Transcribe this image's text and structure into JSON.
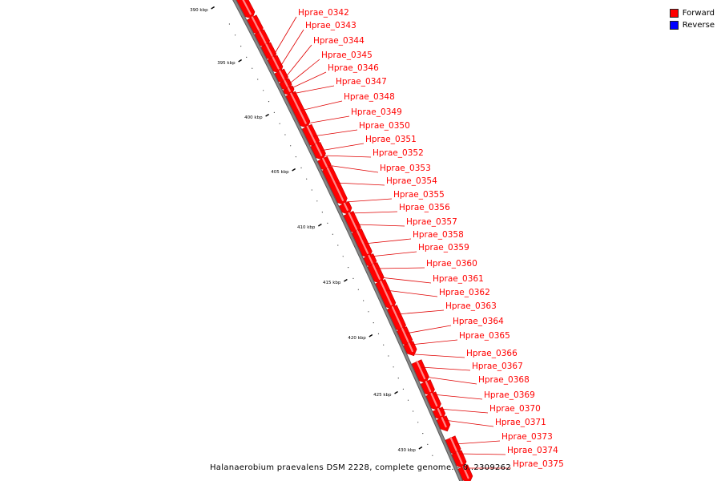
{
  "legend": {
    "forward": {
      "label": "Forward",
      "color": "#ff0000"
    },
    "reverse": {
      "label": "Reverse",
      "color": "#0000ff"
    }
  },
  "caption": "Halanaerobium praevalens DSM 2228, complete genome. - 0..2309262",
  "backbone_color": "#888888",
  "ticks": [
    "390 kbp",
    "395 kbp",
    "400 kbp",
    "405 kbp",
    "410 kbp",
    "415 kbp",
    "420 kbp",
    "425 kbp",
    "430 kbp"
  ],
  "genes": [
    {
      "label": "Hprae_0342",
      "strand": "forward"
    },
    {
      "label": "Hprae_0343",
      "strand": "forward"
    },
    {
      "label": "Hprae_0344",
      "strand": "forward"
    },
    {
      "label": "Hprae_0345",
      "strand": "forward"
    },
    {
      "label": "Hprae_0346",
      "strand": "forward"
    },
    {
      "label": "Hprae_0347",
      "strand": "forward"
    },
    {
      "label": "Hprae_0348",
      "strand": "forward"
    },
    {
      "label": "Hprae_0349",
      "strand": "forward"
    },
    {
      "label": "Hprae_0350",
      "strand": "forward"
    },
    {
      "label": "Hprae_0351",
      "strand": "forward"
    },
    {
      "label": "Hprae_0352",
      "strand": "forward"
    },
    {
      "label": "Hprae_0353",
      "strand": "forward"
    },
    {
      "label": "Hprae_0354",
      "strand": "forward"
    },
    {
      "label": "Hprae_0355",
      "strand": "forward"
    },
    {
      "label": "Hprae_0356",
      "strand": "forward"
    },
    {
      "label": "Hprae_0357",
      "strand": "forward"
    },
    {
      "label": "Hprae_0358",
      "strand": "forward"
    },
    {
      "label": "Hprae_0359",
      "strand": "forward"
    },
    {
      "label": "Hprae_0360",
      "strand": "forward"
    },
    {
      "label": "Hprae_0361",
      "strand": "forward"
    },
    {
      "label": "Hprae_0362",
      "strand": "forward"
    },
    {
      "label": "Hprae_0363",
      "strand": "forward"
    },
    {
      "label": "Hprae_0364",
      "strand": "forward"
    },
    {
      "label": "Hprae_0365",
      "strand": "forward"
    },
    {
      "label": "Hprae_0366",
      "strand": "forward"
    },
    {
      "label": "Hprae_0367",
      "strand": "forward"
    },
    {
      "label": "Hprae_0368",
      "strand": "forward"
    },
    {
      "label": "Hprae_0369",
      "strand": "forward"
    },
    {
      "label": "Hprae_0370",
      "strand": "forward"
    },
    {
      "label": "Hprae_0371",
      "strand": "forward"
    },
    {
      "label": "Hprae_0373",
      "strand": "forward"
    },
    {
      "label": "Hprae_0374",
      "strand": "forward"
    },
    {
      "label": "Hprae_0375",
      "strand": "forward"
    }
  ]
}
